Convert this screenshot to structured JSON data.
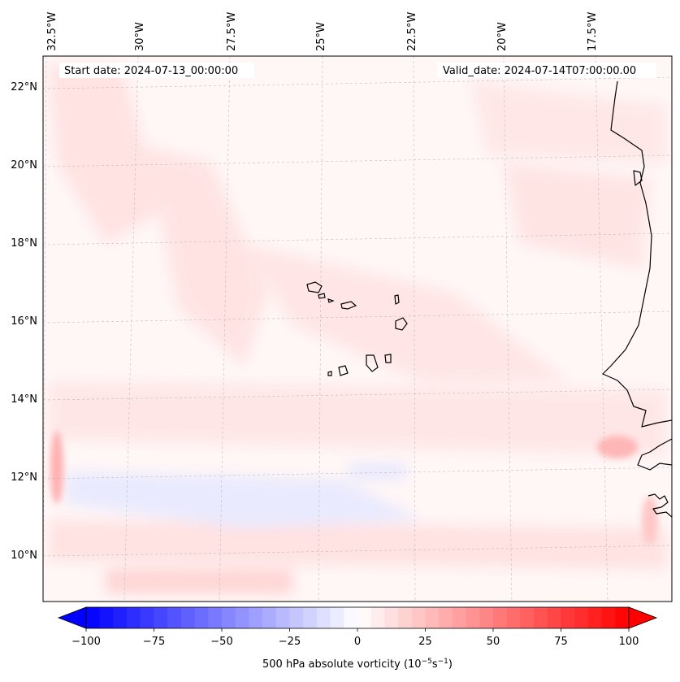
{
  "map": {
    "start_label": "Start date: 2024-07-13_00:00:00",
    "valid_label": "Valid_date: 2024-07-14T07:00:00.00",
    "top_lon_labels": [
      "32.5°W",
      "30°W",
      "27.5°W",
      "25°W",
      "22.5°W",
      "20°W",
      "17.5°W"
    ],
    "left_lat_labels": [
      "22°N",
      "20°N",
      "18°N",
      "16°N",
      "14°N",
      "12°N",
      "10°N"
    ],
    "field": "500 hPa absolute vorticity",
    "colormap": "bwr",
    "colors": {
      "negative": "#0000ff",
      "zero": "#ffffff",
      "positive": "#ff0000",
      "coastline": "#000000"
    }
  },
  "colorbar": {
    "ticks": [
      "−100",
      "−75",
      "−50",
      "−25",
      "0",
      "25",
      "50",
      "75",
      "100"
    ],
    "label_prefix": "500 hPa absolute vorticity (10",
    "label_exp1": "−5",
    "label_mid": "s",
    "label_exp2": "−1",
    "label_suffix": ")",
    "range": [
      -100,
      100
    ],
    "extend": "both"
  }
}
